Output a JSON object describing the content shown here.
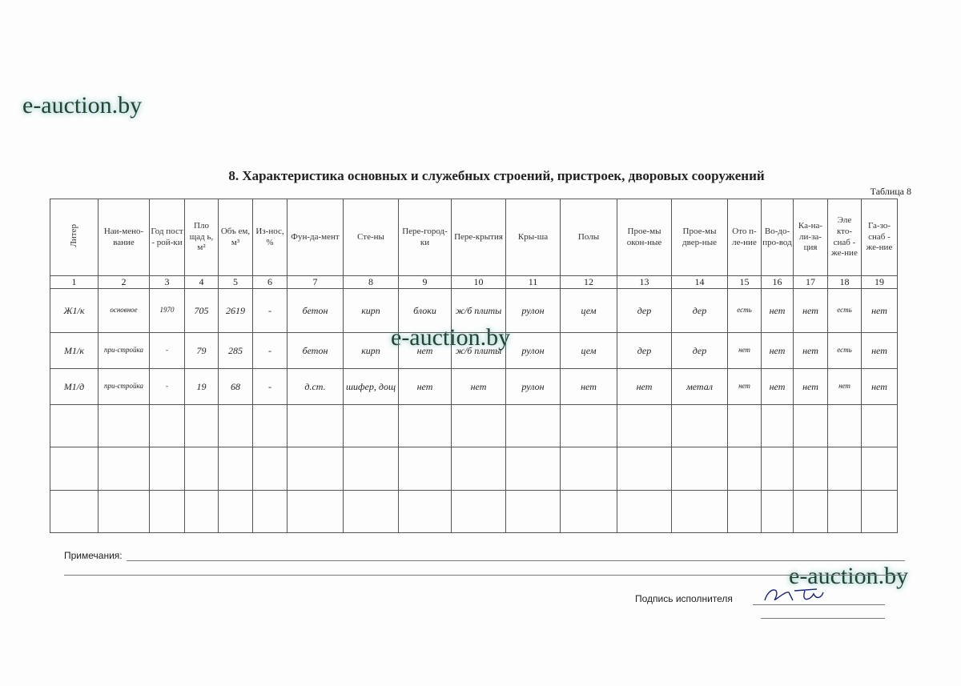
{
  "watermark": "e-auction.by",
  "title": "8. Характеристика основных и служебных строений, пристроек, дворовых сооружений",
  "table_label": "Таблица 8",
  "headers": [
    "Литер",
    "Наи-мено-вание",
    "Год пост - рой-ки",
    "Пло щад ь, м²",
    "Объ ем, м³",
    "Из-нос, %",
    "Фун-да-мент",
    "Сте-ны",
    "Пере-город-ки",
    "Пере-крытия",
    "Кры-ша",
    "Полы",
    "Прое-мы окон-ные",
    "Прое-мы двер-ные",
    "Ото п-ле-ние",
    "Во-до-про-вод",
    "Ка-на-ли-за-ция",
    "Эле кто-снаб - же-ние",
    "Га-зо-снаб - же-ние"
  ],
  "numbers": [
    "1",
    "2",
    "3",
    "4",
    "5",
    "6",
    "7",
    "8",
    "9",
    "10",
    "11",
    "12",
    "13",
    "14",
    "15",
    "16",
    "17",
    "18",
    "19"
  ],
  "rows": [
    [
      "Ж1/к",
      "основное",
      "1970",
      "705",
      "2619",
      "-",
      "бетон",
      "кирп",
      "блоки",
      "ж/б плиты",
      "рулон",
      "цем",
      "дер",
      "дер",
      "есть",
      "нет",
      "нет",
      "есть",
      "нет"
    ],
    [
      "М1/к",
      "при-стройка",
      "-",
      "79",
      "285",
      "-",
      "бетон",
      "кирп",
      "нет",
      "ж/б плиты",
      "рулон",
      "цем",
      "дер",
      "дер",
      "нет",
      "нет",
      "нет",
      "есть",
      "нет"
    ],
    [
      "М1/д",
      "при-стройка",
      "-",
      "19",
      "68",
      "-",
      "д.ст.",
      "шифер, дощ",
      "нет",
      "нет",
      "рулон",
      "нет",
      "нет",
      "метал",
      "нет",
      "нет",
      "нет",
      "нет",
      "нет"
    ],
    [
      "",
      "",
      "",
      "",
      "",
      "",
      "",
      "",
      "",
      "",
      "",
      "",
      "",
      "",
      "",
      "",
      "",
      "",
      ""
    ],
    [
      "",
      "",
      "",
      "",
      "",
      "",
      "",
      "",
      "",
      "",
      "",
      "",
      "",
      "",
      "",
      "",
      "",
      "",
      ""
    ],
    [
      "",
      "",
      "",
      "",
      "",
      "",
      "",
      "",
      "",
      "",
      "",
      "",
      "",
      "",
      "",
      "",
      "",
      "",
      ""
    ]
  ],
  "notes_label": "Примечания:",
  "signature_label": "Подпись исполнителя"
}
